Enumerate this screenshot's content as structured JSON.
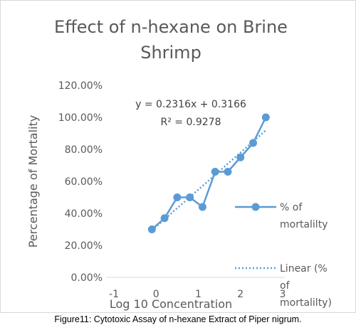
{
  "chart_data": {
    "type": "scatter",
    "title_line1": "Effect of n-hexane on Brine",
    "title_line2": "Shrimp",
    "xlabel": "Log 10 Concentration",
    "ylabel": "Percentage of Mortality",
    "xlim": [
      -1,
      3
    ],
    "ylim": [
      0,
      1.2
    ],
    "x_ticks": [
      "-1",
      "0",
      "1",
      "2",
      "3"
    ],
    "y_ticks": [
      "0.00%",
      "20.00%",
      "40.00%",
      "60.00%",
      "80.00%",
      "100.00%",
      "120.00%"
    ],
    "series": [
      {
        "name": "% of mortalilty",
        "color": "#5b9bd5",
        "x": [
          -0.1,
          0.2,
          0.5,
          0.8,
          1.1,
          1.4,
          1.7,
          2.0,
          2.3,
          2.6
        ],
        "y": [
          0.3,
          0.37,
          0.5,
          0.5,
          0.44,
          0.66,
          0.66,
          0.75,
          0.84,
          1.0
        ]
      }
    ],
    "trendline": {
      "name_line1": "Linear (%",
      "name_line2": "of",
      "name_line3": "mortalilty)",
      "slope": 0.2316,
      "intercept": 0.3166,
      "x_range": [
        -0.1,
        2.6
      ],
      "equation": "y = 0.2316x + 0.3166",
      "r_squared": "R² = 0.9278"
    },
    "legend": {
      "placement": "right",
      "series_line1": "% of",
      "series_line2": "mortalilty"
    }
  },
  "caption": "Figure11: Cytotoxic Assay of n-hexane Extract of Piper nigrum."
}
